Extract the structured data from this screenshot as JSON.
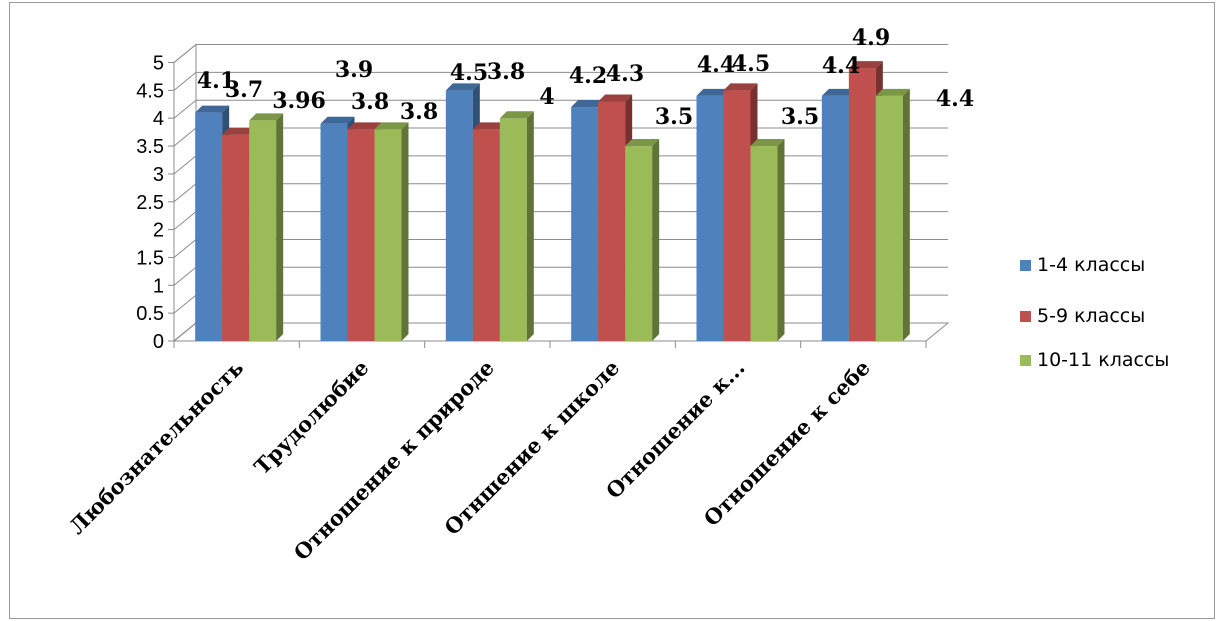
{
  "chart_data": {
    "type": "bar",
    "style": "3d-clustered-column",
    "categories": [
      "Любознательность",
      "Трудолюбие",
      "Отношение к природе",
      "Отншение к школе",
      "Отношение к...",
      "Отношение к себе"
    ],
    "series": [
      {
        "name": "1-4 классы",
        "color": "#4f81bd",
        "values": [
          4.1,
          3.9,
          4.5,
          4.2,
          4.4,
          4.4
        ],
        "labels": [
          "4.1",
          "3.9",
          "4.5",
          "4.2",
          "4.4",
          "4.4"
        ]
      },
      {
        "name": "5-9 классы",
        "color": "#c0504d",
        "values": [
          3.7,
          3.8,
          3.8,
          4.3,
          4.5,
          4.9
        ],
        "labels": [
          "3.7",
          "3.8",
          "3.8",
          "4.3",
          "4.5",
          "4.9"
        ]
      },
      {
        "name": "10-11 классы",
        "color": "#9bbb59",
        "values": [
          3.96,
          3.8,
          4,
          3.5,
          3.5,
          4.4
        ],
        "labels": [
          "3.96",
          "3.8",
          "4",
          "3.5",
          "3.5",
          "4.4"
        ]
      }
    ],
    "yticks": [
      "0",
      "0.5",
      "1",
      "1.5",
      "2",
      "2.5",
      "3",
      "3.5",
      "4",
      "4.5",
      "5"
    ],
    "ylim": [
      0,
      5
    ],
    "grid": true,
    "legend_position": "right"
  }
}
